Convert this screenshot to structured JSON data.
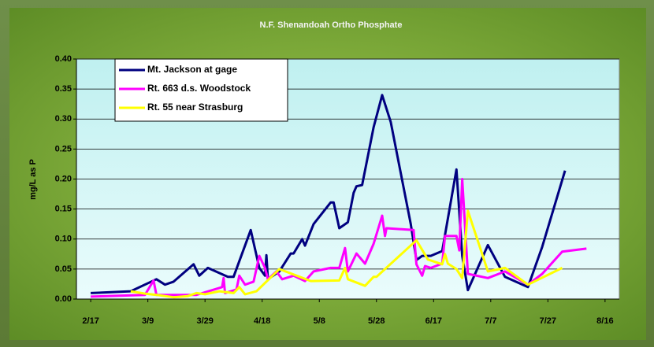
{
  "chart_data": {
    "type": "line",
    "title": "N.F. Shenandoah Ortho Phosphate",
    "y_label": "mg/L as P",
    "xlim": [
      43,
      233
    ],
    "xticks": [
      {
        "value": 48,
        "label": "2/17"
      },
      {
        "value": 68,
        "label": "3/9"
      },
      {
        "value": 88,
        "label": "3/29"
      },
      {
        "value": 108,
        "label": "4/18"
      },
      {
        "value": 128,
        "label": "5/8"
      },
      {
        "value": 148,
        "label": "5/28"
      },
      {
        "value": 168,
        "label": "6/17"
      },
      {
        "value": 188,
        "label": "7/7"
      },
      {
        "value": 208,
        "label": "7/27"
      },
      {
        "value": 228,
        "label": "8/16"
      }
    ],
    "ylim": [
      0,
      0.4
    ],
    "yticks": [
      {
        "value": 0,
        "label": "0.00"
      },
      0.05,
      {
        "value": 0.1,
        "label": "0.10"
      },
      0.15,
      {
        "value": 0.2,
        "label": "0.20"
      },
      0.25,
      {
        "value": 0.3,
        "label": "0.30"
      },
      0.35,
      {
        "value": 0.4,
        "label": "0.40"
      }
    ],
    "grid": true,
    "legend": "upper left",
    "series": [
      {
        "name": "Mt. Jackson at gage",
        "color": "#000080",
        "x": [
          48,
          62,
          71,
          74,
          77,
          84,
          86,
          89,
          96,
          98,
          104,
          107,
          109,
          109.5,
          110,
          114,
          118,
          119,
          122,
          123,
          126,
          132,
          133,
          135,
          138,
          140,
          141,
          143,
          147,
          150,
          153,
          160,
          162,
          164,
          167,
          171,
          176,
          178,
          180,
          187,
          193,
          201,
          206,
          214
        ],
        "values": [
          0.01,
          0.013,
          0.033,
          0.024,
          0.029,
          0.058,
          0.039,
          0.052,
          0.037,
          0.037,
          0.115,
          0.052,
          0.039,
          0.073,
          0.033,
          0.046,
          0.076,
          0.076,
          0.1,
          0.089,
          0.125,
          0.161,
          0.161,
          0.118,
          0.128,
          0.177,
          0.188,
          0.19,
          0.286,
          0.34,
          0.295,
          0.125,
          0.065,
          0.072,
          0.072,
          0.08,
          0.216,
          0.072,
          0.015,
          0.09,
          0.037,
          0.02,
          0.087,
          0.214
        ]
      },
      {
        "name": "Rt. 663 d.s. Woodstock",
        "color": "#ff00ff",
        "x": [
          48,
          67,
          70,
          71,
          85,
          94,
          94.5,
          95,
          99,
          100,
          102,
          105,
          107,
          109,
          110,
          113,
          115,
          119,
          123,
          126,
          132,
          135,
          137,
          138,
          141,
          144,
          147,
          150,
          151,
          151.5,
          161,
          162,
          164,
          165,
          167,
          171,
          172,
          176,
          177,
          178,
          180,
          187,
          193,
          201,
          206,
          213,
          221.5
        ],
        "values": [
          0.004,
          0.007,
          0.031,
          0.007,
          0.007,
          0.02,
          0.035,
          0.01,
          0.016,
          0.039,
          0.024,
          0.029,
          0.072,
          0.052,
          0.033,
          0.046,
          0.033,
          0.039,
          0.03,
          0.046,
          0.052,
          0.052,
          0.085,
          0.046,
          0.076,
          0.059,
          0.092,
          0.139,
          0.105,
          0.118,
          0.115,
          0.058,
          0.039,
          0.055,
          0.052,
          0.059,
          0.105,
          0.105,
          0.081,
          0.2,
          0.042,
          0.035,
          0.046,
          0.024,
          0.042,
          0.079,
          0.084
        ]
      },
      {
        "name": "Rt. 55 near Strasburg",
        "color": "#ffff00",
        "x": [
          62,
          67,
          71,
          77,
          82,
          85,
          88,
          93,
          98,
          100,
          102,
          106,
          114,
          125,
          135,
          137,
          138,
          144,
          147,
          148,
          162,
          166,
          171,
          172,
          173,
          176,
          178,
          180,
          187,
          193,
          201,
          213
        ],
        "values": [
          0.013,
          0.009,
          0.007,
          0.003,
          0.005,
          0.01,
          0.008,
          0.013,
          0.01,
          0.02,
          0.008,
          0.013,
          0.05,
          0.03,
          0.031,
          0.052,
          0.033,
          0.022,
          0.037,
          0.037,
          0.098,
          0.066,
          0.058,
          0.075,
          0.059,
          0.05,
          0.035,
          0.147,
          0.046,
          0.052,
          0.024,
          0.052
        ]
      }
    ]
  }
}
